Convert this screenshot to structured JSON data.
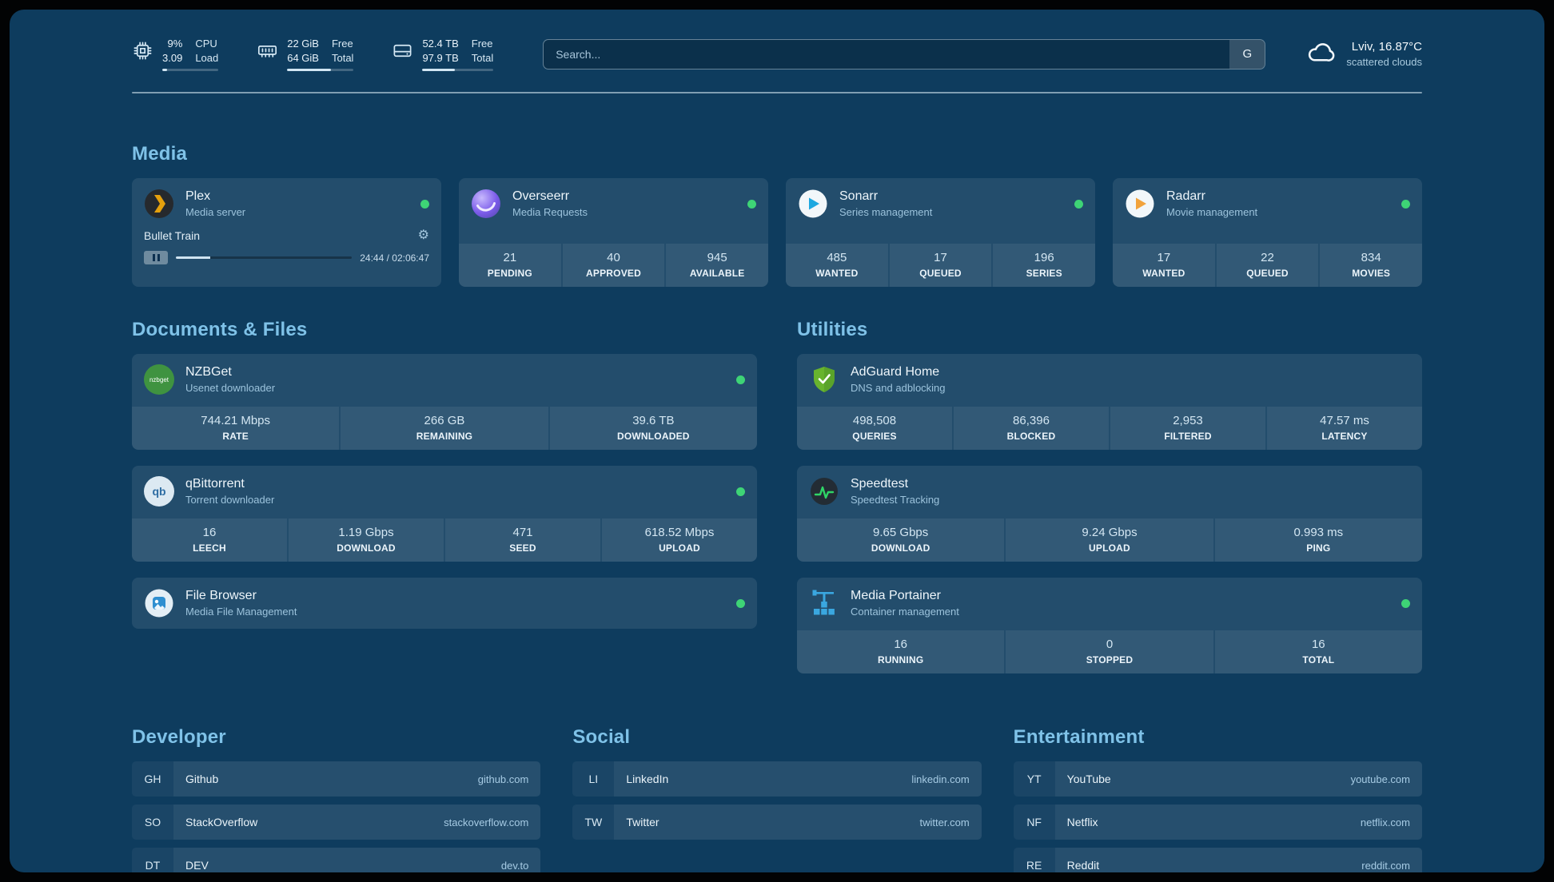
{
  "colors": {
    "background": "#0e3c5e",
    "heading_accent": "#7fc2e8",
    "status_online": "#3ed476"
  },
  "topbar": {
    "cpu": {
      "values": [
        "9%",
        "3.09"
      ],
      "labels": [
        "CPU",
        "Load"
      ],
      "bar_pct": 9
    },
    "memory": {
      "values": [
        "22 GiB",
        "64 GiB"
      ],
      "labels": [
        "Free",
        "Total"
      ],
      "bar_pct": 66
    },
    "disk": {
      "values": [
        "52.4 TB",
        "97.9 TB"
      ],
      "labels": [
        "Free",
        "Total"
      ],
      "bar_pct": 46
    },
    "search": {
      "placeholder": "Search...",
      "provider_label": "G"
    },
    "weather": {
      "location": "Lviv, 16.87°C",
      "condition": "scattered clouds"
    }
  },
  "sections": {
    "media": "Media",
    "documents": "Documents & Files",
    "utilities": "Utilities"
  },
  "services": {
    "plex": {
      "name": "Plex",
      "subtitle": "Media server",
      "status": "online",
      "now_playing": "Bullet Train",
      "time": "24:44 / 02:06:47",
      "progress_pct": 19.5
    },
    "overseerr": {
      "name": "Overseerr",
      "subtitle": "Media Requests",
      "status": "online",
      "stats": [
        {
          "value": "21",
          "label": "PENDING"
        },
        {
          "value": "40",
          "label": "APPROVED"
        },
        {
          "value": "945",
          "label": "AVAILABLE"
        }
      ]
    },
    "sonarr": {
      "name": "Sonarr",
      "subtitle": "Series management",
      "status": "online",
      "stats": [
        {
          "value": "485",
          "label": "WANTED"
        },
        {
          "value": "17",
          "label": "QUEUED"
        },
        {
          "value": "196",
          "label": "SERIES"
        }
      ]
    },
    "radarr": {
      "name": "Radarr",
      "subtitle": "Movie management",
      "status": "online",
      "stats": [
        {
          "value": "17",
          "label": "WANTED"
        },
        {
          "value": "22",
          "label": "QUEUED"
        },
        {
          "value": "834",
          "label": "MOVIES"
        }
      ]
    },
    "nzbget": {
      "name": "NZBGet",
      "subtitle": "Usenet downloader",
      "status": "online",
      "badge": "nzbget",
      "stats": [
        {
          "value": "744.21 Mbps",
          "label": "RATE"
        },
        {
          "value": "266 GB",
          "label": "REMAINING"
        },
        {
          "value": "39.6 TB",
          "label": "DOWNLOADED"
        }
      ]
    },
    "qbittorrent": {
      "name": "qBittorrent",
      "subtitle": "Torrent downloader",
      "status": "online",
      "badge": "qb",
      "stats": [
        {
          "value": "16",
          "label": "LEECH"
        },
        {
          "value": "1.19 Gbps",
          "label": "DOWNLOAD"
        },
        {
          "value": "471",
          "label": "SEED"
        },
        {
          "value": "618.52 Mbps",
          "label": "UPLOAD"
        }
      ]
    },
    "filebrowser": {
      "name": "File Browser",
      "subtitle": "Media File Management",
      "status": "online"
    },
    "adguard": {
      "name": "AdGuard Home",
      "subtitle": "DNS and adblocking",
      "stats": [
        {
          "value": "498,508",
          "label": "QUERIES"
        },
        {
          "value": "86,396",
          "label": "BLOCKED"
        },
        {
          "value": "2,953",
          "label": "FILTERED"
        },
        {
          "value": "47.57 ms",
          "label": "LATENCY"
        }
      ]
    },
    "speedtest": {
      "name": "Speedtest",
      "subtitle": "Speedtest Tracking",
      "stats": [
        {
          "value": "9.65 Gbps",
          "label": "DOWNLOAD"
        },
        {
          "value": "9.24 Gbps",
          "label": "UPLOAD"
        },
        {
          "value": "0.993 ms",
          "label": "PING"
        }
      ]
    },
    "portainer": {
      "name": "Media Portainer",
      "subtitle": "Container management",
      "status": "online",
      "stats": [
        {
          "value": "16",
          "label": "RUNNING"
        },
        {
          "value": "0",
          "label": "STOPPED"
        },
        {
          "value": "16",
          "label": "TOTAL"
        }
      ]
    }
  },
  "bookmarks": [
    {
      "title": "Developer",
      "items": [
        {
          "abbr": "GH",
          "name": "Github",
          "domain": "github.com"
        },
        {
          "abbr": "SO",
          "name": "StackOverflow",
          "domain": "stackoverflow.com"
        },
        {
          "abbr": "DT",
          "name": "DEV",
          "domain": "dev.to"
        }
      ]
    },
    {
      "title": "Social",
      "items": [
        {
          "abbr": "LI",
          "name": "LinkedIn",
          "domain": "linkedin.com"
        },
        {
          "abbr": "TW",
          "name": "Twitter",
          "domain": "twitter.com"
        }
      ]
    },
    {
      "title": "Entertainment",
      "items": [
        {
          "abbr": "YT",
          "name": "YouTube",
          "domain": "youtube.com"
        },
        {
          "abbr": "NF",
          "name": "Netflix",
          "domain": "netflix.com"
        },
        {
          "abbr": "RE",
          "name": "Reddit",
          "domain": "reddit.com"
        }
      ]
    }
  ]
}
